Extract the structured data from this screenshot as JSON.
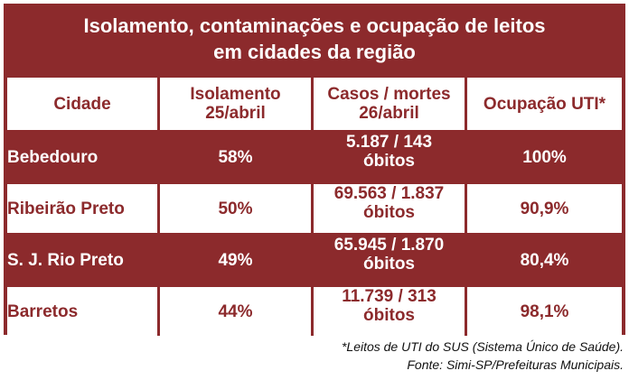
{
  "title": {
    "line1": "Isolamento, contaminações e ocupação de leitos",
    "line2": "em cidades da região"
  },
  "columns": [
    {
      "line1": "Cidade",
      "line2": ""
    },
    {
      "line1": "Isolamento",
      "line2": "25/abril"
    },
    {
      "line1": "Casos / mortes",
      "line2": "26/abril"
    },
    {
      "line1": "Ocupação UTI*",
      "line2": ""
    }
  ],
  "rows": [
    {
      "city": "Bebedouro",
      "isolation": "58%",
      "cases": "5.187 / 143",
      "cases_unit": "óbitos",
      "icu": "100%"
    },
    {
      "city": "Ribeirão Preto",
      "isolation": "50%",
      "cases": "69.563 / 1.837",
      "cases_unit": "óbitos",
      "icu": "90,9%"
    },
    {
      "city": "S. J. Rio Preto",
      "isolation": "49%",
      "cases": "65.945 / 1.870",
      "cases_unit": "óbitos",
      "icu": "80,4%"
    },
    {
      "city": "Barretos",
      "isolation": "44%",
      "cases": "11.739 / 313",
      "cases_unit": "óbitos",
      "icu": "98,1%"
    }
  ],
  "footer": {
    "note": "*Leitos de UTI do SUS (Sistema Único de Saúde).",
    "source": "Fonte: Simi-SP/Prefeituras Municipais."
  },
  "colors": {
    "brand": "#8c2a2c",
    "background": "#ffffff"
  }
}
